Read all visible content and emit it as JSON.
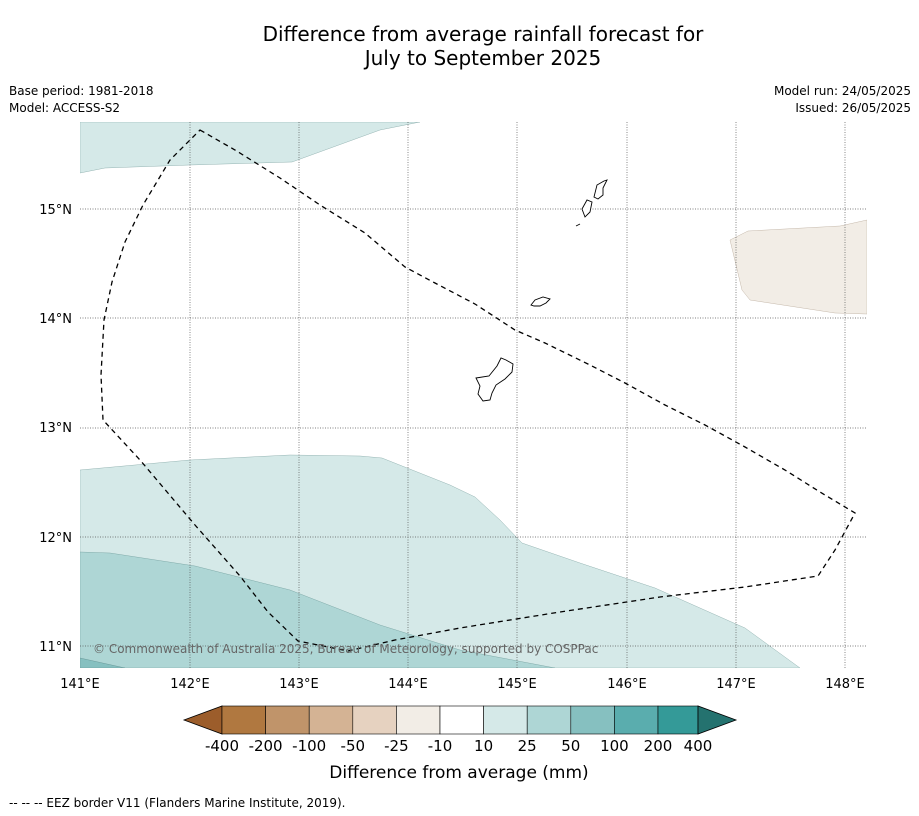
{
  "title": {
    "line1": "Difference from average rainfall forecast for",
    "line2": "July to September 2025"
  },
  "meta": {
    "base_period": "Base period: 1981-2018",
    "model": "Model: ACCESS-S2",
    "model_run": "Model run: 24/05/2025",
    "issued": "Issued: 26/05/2025"
  },
  "map": {
    "lon_range": [
      141.0,
      148.2
    ],
    "lat_range": [
      10.8,
      15.8
    ],
    "lon_ticks": [
      "141°E",
      "142°E",
      "143°E",
      "144°E",
      "145°E",
      "146°E",
      "147°E",
      "148°E"
    ],
    "lat_ticks": [
      "11°N",
      "12°N",
      "13°N",
      "14°N",
      "15°N"
    ],
    "gridlines": true,
    "copyright": "© Commonwealth of Australia 2025, Bureau of Meteorology, supported by COSPPac",
    "eez_border_color": "#000000",
    "coast_color": "#000000"
  },
  "colorbar": {
    "label": "Difference from average (mm)",
    "ticks": [
      "-400",
      "-200",
      "-100",
      "-50",
      "-25",
      "-10",
      "10",
      "25",
      "50",
      "100",
      "200",
      "400"
    ],
    "colors": [
      "#9c5d2b",
      "#b07840",
      "#c0946a",
      "#d4b394",
      "#e6d2c0",
      "#f2ede6",
      "#ffffff",
      "#d5e9e8",
      "#aed6d5",
      "#86c0c0",
      "#5aadae",
      "#349a98",
      "#24726f"
    ]
  },
  "footnote": "--  --  -- EEZ border V11 (Flanders Marine Institute, 2019)."
}
